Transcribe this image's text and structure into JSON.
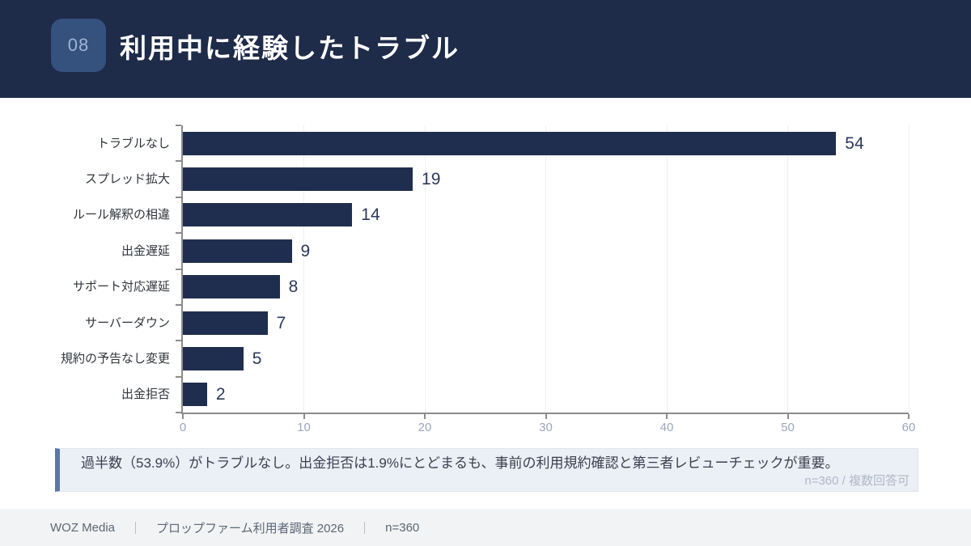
{
  "header": {
    "badge": "08",
    "title": "利用中に経験したトラブル",
    "bg_color": "#1E2B49",
    "badge_bg_color": "#35517E"
  },
  "chart_data": {
    "type": "bar",
    "orientation": "horizontal",
    "title": "利用中に経験したトラブル",
    "categories": [
      "トラブルなし",
      "スプレッド拡大",
      "ルール解釈の相違",
      "出金遅延",
      "サポート対応遅延",
      "サーバーダウン",
      "規約の予告なし変更",
      "出金拒否"
    ],
    "values": [
      54,
      19,
      14,
      9,
      8,
      7,
      5,
      2
    ],
    "xlabel": "",
    "ylabel": "",
    "xlim": [
      0,
      60
    ],
    "xticks": [
      0,
      10,
      20,
      30,
      40,
      50,
      60
    ],
    "grid": true,
    "legend": false,
    "bar_color": "#1F2E4E",
    "value_labels": [
      54,
      19,
      14,
      9,
      8,
      7,
      5,
      2
    ]
  },
  "note": {
    "text": "過半数（53.9%）がトラブルなし。出金拒否は1.9%にとどまるも、事前の利用規約確認と第三者レビューチェックが重要。",
    "sub": "n=360 / 複数回答可"
  },
  "footer": {
    "brand": "WOZ Media",
    "separator": "｜",
    "survey": "プロップファーム利用者調査 2026",
    "sample": "n=360"
  }
}
